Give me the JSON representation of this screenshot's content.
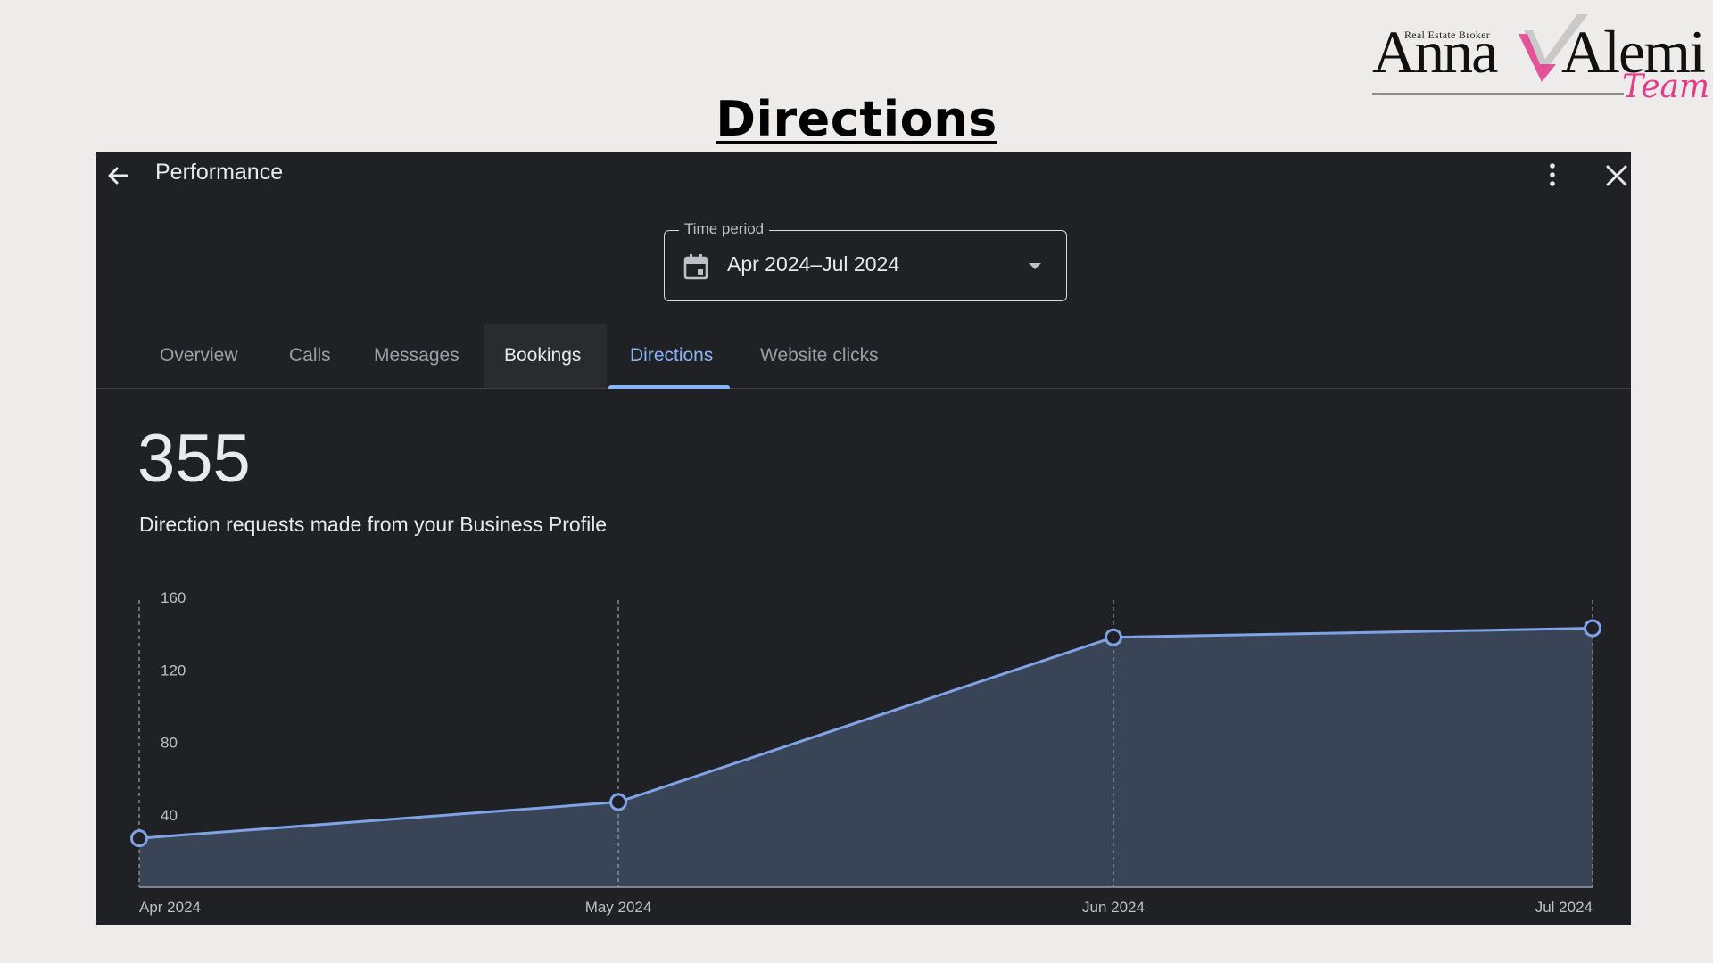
{
  "slide": {
    "title": "Directions"
  },
  "logo": {
    "tagline": "Real Estate Broker",
    "name_first": "Anna",
    "name_last": "Alemi",
    "team": "Team",
    "accent_color": "#E33A8C"
  },
  "app": {
    "title": "Performance",
    "icons": {
      "back": "arrow-back-icon",
      "more": "more-vert-icon",
      "close": "close-icon",
      "calendar": "calendar-icon",
      "dropdown": "dropdown-caret-icon"
    }
  },
  "time_period": {
    "label": "Time period",
    "value": "Apr 2024–Jul 2024"
  },
  "tabs": [
    {
      "label": "Overview"
    },
    {
      "label": "Calls"
    },
    {
      "label": "Messages"
    },
    {
      "label": "Bookings",
      "state": "hover"
    },
    {
      "label": "Directions",
      "state": "active"
    },
    {
      "label": "Website clicks"
    }
  ],
  "summary": {
    "value": "355",
    "caption": "Direction requests made from your Business Profile"
  },
  "colors": {
    "accent": "#8AB4F8",
    "panel": "#202124",
    "area": "#394457",
    "line": "#7FA3E6"
  },
  "chart_data": {
    "type": "area",
    "x": [
      "Apr 2024",
      "May 2024",
      "Jun 2024",
      "Jul 2024"
    ],
    "series": [
      {
        "values": [
          27,
          47,
          138,
          143
        ]
      }
    ],
    "yticks": [
      40,
      80,
      120,
      160
    ],
    "ylim": [
      0,
      160
    ],
    "grid": "vertical dashed lines at data points"
  }
}
